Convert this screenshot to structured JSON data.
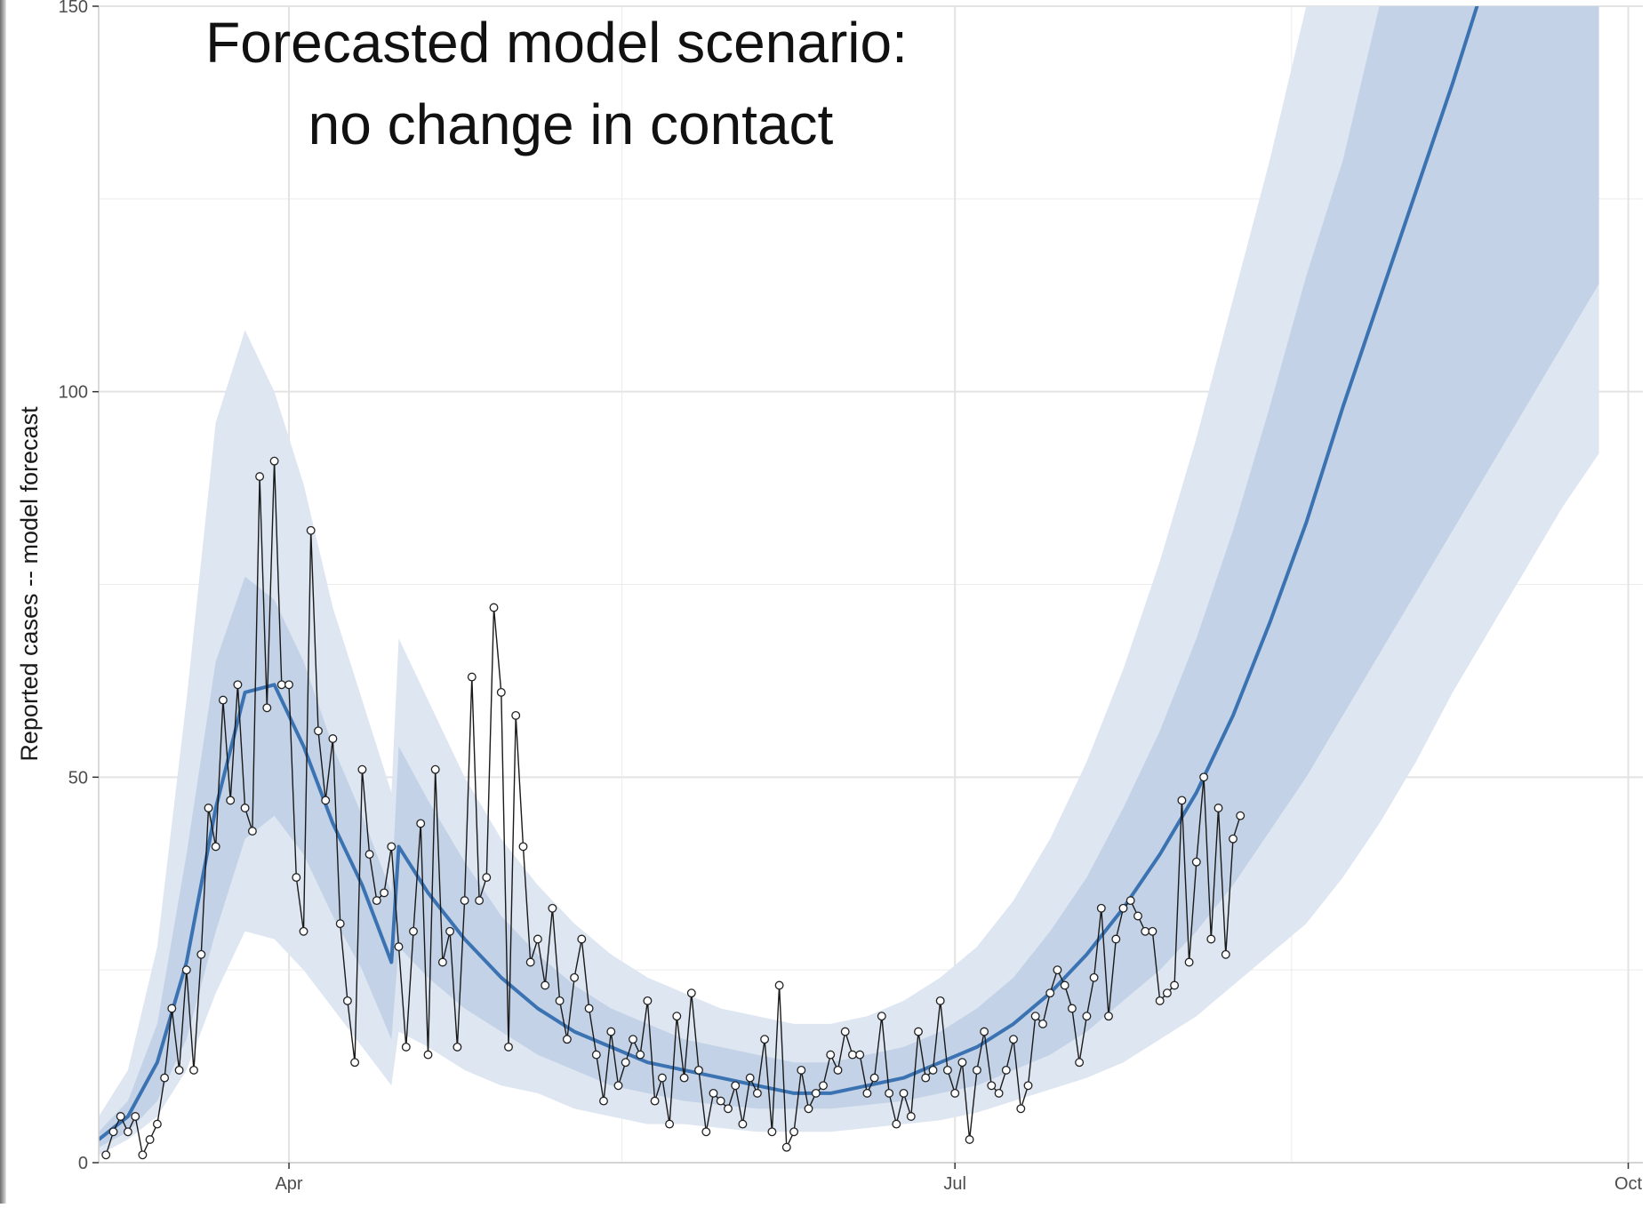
{
  "chart_data": {
    "type": "line",
    "title_lines": [
      "Forecasted model scenario:",
      "no change in contact"
    ],
    "xlabel": "",
    "ylabel": "Reported cases -- model forecast",
    "x_axis": {
      "type": "date",
      "range": [
        "2020-03-06",
        "2020-10-03"
      ],
      "ticks": [
        {
          "value": "2020-04-01",
          "label": "Apr"
        },
        {
          "value": "2020-07-01",
          "label": "Jul"
        },
        {
          "value": "2020-10-01",
          "label": "Oct"
        }
      ]
    },
    "y_axis": {
      "range": [
        0,
        150
      ],
      "ticks": [
        {
          "value": 0,
          "label": "0"
        },
        {
          "value": 50,
          "label": "50"
        },
        {
          "value": 100,
          "label": "100"
        },
        {
          "value": 150,
          "label": "150"
        }
      ]
    },
    "grid": true,
    "legend": "none",
    "colors": {
      "forecast_line": "#3b73b2",
      "inner_band": "#c3d2e6",
      "outer_band": "#dde6f1",
      "observed_line": "#1a1a1a",
      "observed_marker_fill": "#ffffff",
      "grid": "#ebebeb"
    },
    "forecast": {
      "dates": [
        "2020-03-06",
        "2020-03-10",
        "2020-03-14",
        "2020-03-18",
        "2020-03-22",
        "2020-03-26",
        "2020-03-30",
        "2020-04-03",
        "2020-04-07",
        "2020-04-11",
        "2020-04-15",
        "2020-04-16",
        "2020-04-20",
        "2020-04-25",
        "2020-04-30",
        "2020-05-05",
        "2020-05-10",
        "2020-05-15",
        "2020-05-20",
        "2020-05-25",
        "2020-05-30",
        "2020-06-04",
        "2020-06-09",
        "2020-06-14",
        "2020-06-19",
        "2020-06-24",
        "2020-06-29",
        "2020-07-04",
        "2020-07-09",
        "2020-07-14",
        "2020-07-19",
        "2020-07-24",
        "2020-07-29",
        "2020-08-03",
        "2020-08-08",
        "2020-08-13",
        "2020-08-18",
        "2020-08-23",
        "2020-08-28",
        "2020-09-02",
        "2020-09-07",
        "2020-09-12",
        "2020-09-17",
        "2020-09-22",
        "2020-09-27"
      ],
      "median": [
        3,
        6,
        13,
        26,
        46,
        61,
        62,
        54,
        44,
        36,
        26,
        41,
        35,
        29,
        24,
        20,
        17,
        15,
        13,
        12,
        11,
        10,
        9,
        9,
        10,
        11,
        13,
        15,
        18,
        22,
        27,
        33,
        40,
        48,
        58,
        70,
        83,
        98,
        112,
        126,
        140,
        155,
        170,
        185,
        200
      ],
      "inner_lower": [
        2,
        4,
        8,
        16,
        30,
        42,
        45,
        40,
        32,
        25,
        16,
        28,
        24,
        20,
        17,
        14,
        12,
        10,
        9,
        8,
        7.5,
        7,
        7,
        7,
        7.5,
        8,
        9,
        10,
        12,
        14,
        17,
        21,
        25,
        30,
        36,
        43,
        50,
        58,
        66,
        74,
        82,
        90,
        98,
        106,
        114
      ],
      "inner_upper": [
        4,
        8,
        18,
        40,
        65,
        76,
        73,
        65,
        54,
        45,
        35,
        54,
        47,
        39,
        32,
        27,
        23,
        20,
        18,
        16,
        15,
        14,
        13,
        13,
        14,
        15,
        17,
        20,
        24,
        30,
        37,
        46,
        56,
        68,
        82,
        98,
        115,
        130,
        150,
        160,
        170,
        180,
        190,
        200,
        210
      ],
      "outer_lower": [
        1,
        3,
        6,
        12,
        22,
        30,
        29,
        25,
        20,
        15,
        10,
        17,
        15,
        12,
        10,
        9,
        7,
        6,
        5,
        5,
        4.5,
        4,
        4,
        4,
        4.5,
        5,
        5.5,
        6.5,
        8,
        9.5,
        11,
        13,
        16,
        19,
        23,
        27,
        31,
        37,
        44,
        52,
        61,
        69,
        77,
        85,
        92
      ],
      "outer_upper": [
        6,
        12,
        28,
        60,
        96,
        108,
        100,
        88,
        72,
        60,
        48,
        68,
        60,
        50,
        42,
        36,
        31,
        27,
        24,
        22,
        20,
        19,
        18,
        18,
        19,
        21,
        24,
        28,
        34,
        42,
        52,
        64,
        78,
        94,
        112,
        130,
        150,
        170,
        190,
        200,
        210,
        220,
        230,
        240,
        250
      ]
    },
    "observed": {
      "start_date": "2020-03-07",
      "values": [
        1,
        4,
        6,
        4,
        6,
        1,
        3,
        5,
        11,
        20,
        12,
        25,
        12,
        27,
        46,
        41,
        60,
        47,
        62,
        46,
        43,
        89,
        59,
        91,
        62,
        62,
        37,
        30,
        82,
        56,
        47,
        55,
        31,
        21,
        13,
        51,
        40,
        34,
        35,
        41,
        28,
        15,
        30,
        44,
        14,
        51,
        26,
        30,
        15,
        34,
        63,
        34,
        37,
        72,
        61,
        15,
        58,
        41,
        26,
        29,
        23,
        33,
        21,
        16,
        24,
        29,
        20,
        14,
        8,
        17,
        10,
        13,
        16,
        14,
        21,
        8,
        11,
        5,
        19,
        11,
        22,
        12,
        4,
        9,
        8,
        7,
        10,
        5,
        11,
        9,
        16,
        4,
        23,
        2,
        4,
        12,
        7,
        9,
        10,
        14,
        12,
        17,
        14,
        14,
        9,
        11,
        19,
        9,
        5,
        9,
        6,
        17,
        11,
        12,
        21,
        12,
        9,
        13,
        3,
        12,
        17,
        10,
        9,
        12,
        16,
        7,
        10,
        19,
        18,
        22,
        25,
        23,
        20,
        13,
        19,
        24,
        33,
        19,
        29,
        33,
        34,
        32,
        30,
        30,
        21,
        22,
        23,
        47,
        26,
        39,
        50,
        29,
        46,
        27,
        42,
        45
      ]
    }
  }
}
